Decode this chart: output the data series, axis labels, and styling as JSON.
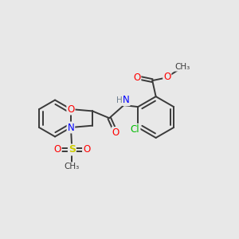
{
  "bg_color": "#e8e8e8",
  "bond_color": "#3a3a3a",
  "atom_colors": {
    "O": "#ff0000",
    "N": "#0000ff",
    "Cl": "#00bb00",
    "S": "#cccc00",
    "H": "#708090",
    "C": "#3a3a3a"
  },
  "font_size": 8.5,
  "line_width": 1.4
}
